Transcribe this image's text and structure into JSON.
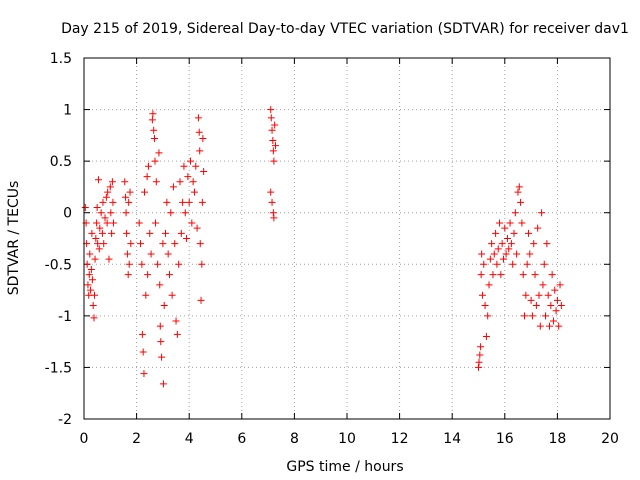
{
  "chart_data": {
    "type": "scatter",
    "title": "Day 215 of 2019, Sidereal Day-to-day VTEC variation (SDTVAR) for receiver dav1",
    "xlabel": "GPS time / hours",
    "ylabel": "SDTVAR / TECUs",
    "xlim": [
      0,
      20
    ],
    "ylim": [
      -2,
      1.5
    ],
    "x_ticks": [
      0,
      2,
      4,
      6,
      8,
      10,
      12,
      14,
      16,
      18,
      20
    ],
    "y_ticks": [
      -2,
      -1.5,
      -1,
      -0.5,
      0,
      0.5,
      1,
      1.5
    ],
    "x_tick_labels": [
      "0",
      "2",
      "4",
      "6",
      "8",
      "10",
      "12",
      "14",
      "16",
      "18",
      "20"
    ],
    "y_tick_labels": [
      "-2",
      "-1.5",
      "-1",
      "-0.5",
      "0",
      "0.5",
      "1",
      "1.5"
    ],
    "grid": true,
    "marker": "+",
    "color": "#ff0000",
    "series": [
      {
        "name": "dav1",
        "points": [
          [
            0.05,
            0.05
          ],
          [
            0.08,
            -0.1
          ],
          [
            0.1,
            -0.3
          ],
          [
            0.12,
            -0.5
          ],
          [
            0.15,
            -0.7
          ],
          [
            0.18,
            -0.8
          ],
          [
            0.2,
            -0.6
          ],
          [
            0.22,
            -0.4
          ],
          [
            0.25,
            -0.75
          ],
          [
            0.28,
            -0.55
          ],
          [
            0.3,
            -0.2
          ],
          [
            0.32,
            -0.65
          ],
          [
            0.35,
            -0.9
          ],
          [
            0.38,
            -1.02
          ],
          [
            0.4,
            -0.8
          ],
          [
            0.42,
            -0.45
          ],
          [
            0.45,
            -0.25
          ],
          [
            0.48,
            -0.1
          ],
          [
            0.5,
            0.05
          ],
          [
            0.52,
            -0.3
          ],
          [
            0.55,
            0.32
          ],
          [
            0.58,
            -0.35
          ],
          [
            0.6,
            -0.15
          ],
          [
            0.65,
            0.0
          ],
          [
            0.7,
            -0.2
          ],
          [
            0.72,
            0.1
          ],
          [
            0.75,
            -0.3
          ],
          [
            0.8,
            -0.05
          ],
          [
            0.85,
            0.15
          ],
          [
            0.88,
            -0.1
          ],
          [
            0.9,
            0.2
          ],
          [
            0.95,
            -0.45
          ],
          [
            1.0,
            0.25
          ],
          [
            1.02,
            0.0
          ],
          [
            1.05,
            -0.2
          ],
          [
            1.08,
            0.3
          ],
          [
            1.1,
            0.1
          ],
          [
            1.12,
            -0.1
          ],
          [
            1.55,
            0.3
          ],
          [
            1.58,
            0.15
          ],
          [
            1.6,
            0.0
          ],
          [
            1.62,
            -0.2
          ],
          [
            1.65,
            -0.4
          ],
          [
            1.68,
            -0.6
          ],
          [
            1.7,
            0.1
          ],
          [
            1.72,
            -0.5
          ],
          [
            1.75,
            0.2
          ],
          [
            1.78,
            -0.3
          ],
          [
            2.1,
            -0.1
          ],
          [
            2.15,
            -0.3
          ],
          [
            2.2,
            -0.5
          ],
          [
            2.22,
            -1.18
          ],
          [
            2.25,
            -1.35
          ],
          [
            2.28,
            -1.56
          ],
          [
            2.3,
            0.2
          ],
          [
            2.35,
            -0.8
          ],
          [
            2.4,
            0.35
          ],
          [
            2.42,
            -0.6
          ],
          [
            2.45,
            0.45
          ],
          [
            2.5,
            -0.2
          ],
          [
            2.55,
            -0.4
          ],
          [
            2.6,
            0.9
          ],
          [
            2.62,
            0.96
          ],
          [
            2.65,
            0.8
          ],
          [
            2.68,
            0.72
          ],
          [
            2.7,
            0.5
          ],
          [
            2.72,
            -0.1
          ],
          [
            2.75,
            0.3
          ],
          [
            2.8,
            -0.5
          ],
          [
            2.85,
            0.58
          ],
          [
            2.88,
            -0.7
          ],
          [
            2.9,
            -1.1
          ],
          [
            2.92,
            -1.25
          ],
          [
            2.95,
            -1.4
          ],
          [
            3.0,
            -0.3
          ],
          [
            3.02,
            -1.66
          ],
          [
            3.05,
            -0.9
          ],
          [
            3.1,
            -0.2
          ],
          [
            3.15,
            0.1
          ],
          [
            3.2,
            -0.4
          ],
          [
            3.25,
            -0.6
          ],
          [
            3.3,
            0.0
          ],
          [
            3.35,
            -0.8
          ],
          [
            3.4,
            0.25
          ],
          [
            3.45,
            -0.3
          ],
          [
            3.5,
            -1.05
          ],
          [
            3.55,
            -1.18
          ],
          [
            3.6,
            -0.5
          ],
          [
            3.65,
            0.3
          ],
          [
            3.7,
            -0.2
          ],
          [
            3.75,
            0.1
          ],
          [
            3.8,
            0.45
          ],
          [
            3.85,
            0.0
          ],
          [
            3.9,
            -0.25
          ],
          [
            3.95,
            0.35
          ],
          [
            4.0,
            0.1
          ],
          [
            4.05,
            0.5
          ],
          [
            4.1,
            -0.1
          ],
          [
            4.15,
            0.3
          ],
          [
            4.2,
            0.2
          ],
          [
            4.25,
            0.45
          ],
          [
            4.3,
            -0.15
          ],
          [
            4.35,
            0.92
          ],
          [
            4.38,
            0.78
          ],
          [
            4.4,
            0.6
          ],
          [
            4.42,
            -0.3
          ],
          [
            4.45,
            -0.85
          ],
          [
            4.48,
            -0.5
          ],
          [
            4.5,
            0.1
          ],
          [
            4.52,
            0.72
          ],
          [
            4.55,
            0.4
          ],
          [
            7.1,
            1.0
          ],
          [
            7.12,
            0.92
          ],
          [
            7.15,
            0.8
          ],
          [
            7.18,
            0.7
          ],
          [
            7.2,
            0.6
          ],
          [
            7.22,
            0.5
          ],
          [
            7.25,
            0.85
          ],
          [
            7.28,
            0.65
          ],
          [
            7.1,
            0.2
          ],
          [
            7.15,
            0.1
          ],
          [
            7.2,
            0.0
          ],
          [
            7.22,
            -0.05
          ],
          [
            15.0,
            -1.5
          ],
          [
            15.02,
            -1.45
          ],
          [
            15.05,
            -1.38
          ],
          [
            15.08,
            -1.3
          ],
          [
            15.1,
            -0.6
          ],
          [
            15.12,
            -0.4
          ],
          [
            15.15,
            -0.8
          ],
          [
            15.2,
            -0.5
          ],
          [
            15.25,
            -0.9
          ],
          [
            15.3,
            -1.2
          ],
          [
            15.35,
            -1.0
          ],
          [
            15.4,
            -0.7
          ],
          [
            15.45,
            -0.45
          ],
          [
            15.5,
            -0.3
          ],
          [
            15.55,
            -0.6
          ],
          [
            15.6,
            -0.4
          ],
          [
            15.65,
            -0.2
          ],
          [
            15.7,
            -0.5
          ],
          [
            15.75,
            -0.35
          ],
          [
            15.8,
            -0.1
          ],
          [
            15.85,
            -0.6
          ],
          [
            15.9,
            -0.3
          ],
          [
            15.95,
            -0.45
          ],
          [
            16.0,
            -0.15
          ],
          [
            16.05,
            -0.4
          ],
          [
            16.1,
            -0.25
          ],
          [
            16.15,
            -0.35
          ],
          [
            16.2,
            -0.1
          ],
          [
            16.25,
            -0.3
          ],
          [
            16.3,
            -0.5
          ],
          [
            16.35,
            -0.2
          ],
          [
            16.4,
            0.0
          ],
          [
            16.45,
            -0.4
          ],
          [
            16.5,
            0.2
          ],
          [
            16.55,
            0.25
          ],
          [
            16.6,
            0.1
          ],
          [
            16.65,
            -0.1
          ],
          [
            16.7,
            -0.6
          ],
          [
            16.75,
            -1.0
          ],
          [
            16.8,
            -0.8
          ],
          [
            16.85,
            -0.5
          ],
          [
            16.9,
            -0.2
          ],
          [
            16.95,
            -0.4
          ],
          [
            17.0,
            -0.85
          ],
          [
            17.05,
            -1.0
          ],
          [
            17.1,
            -0.3
          ],
          [
            17.15,
            -0.6
          ],
          [
            17.2,
            -0.9
          ],
          [
            17.25,
            -0.15
          ],
          [
            17.3,
            -0.8
          ],
          [
            17.35,
            -1.1
          ],
          [
            17.4,
            0.0
          ],
          [
            17.45,
            -0.7
          ],
          [
            17.5,
            -0.5
          ],
          [
            17.55,
            -1.0
          ],
          [
            17.6,
            -0.3
          ],
          [
            17.65,
            -0.8
          ],
          [
            17.7,
            -1.1
          ],
          [
            17.75,
            -0.9
          ],
          [
            17.8,
            -0.6
          ],
          [
            17.85,
            -1.05
          ],
          [
            17.9,
            -0.75
          ],
          [
            17.95,
            -0.95
          ],
          [
            18.0,
            -0.85
          ],
          [
            18.05,
            -1.1
          ],
          [
            18.1,
            -0.7
          ],
          [
            18.15,
            -0.9
          ]
        ]
      }
    ]
  }
}
